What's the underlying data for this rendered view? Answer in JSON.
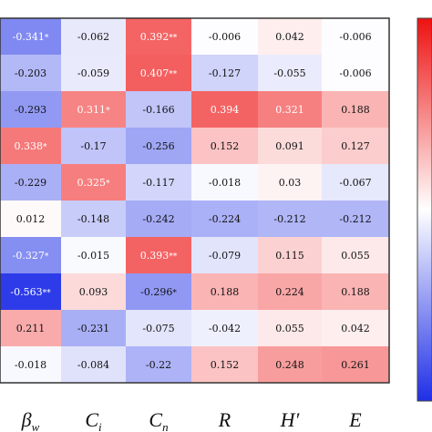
{
  "chart_data": {
    "type": "heatmap",
    "columns": [
      {
        "main": "β",
        "sub": "w"
      },
      {
        "main": "C",
        "sub": "i"
      },
      {
        "main": "C",
        "sub": "n"
      },
      {
        "main": "R",
        "sub": ""
      },
      {
        "main": "H′",
        "sub": ""
      },
      {
        "main": "E",
        "sub": ""
      }
    ],
    "rows": [
      [
        {
          "v": -0.341,
          "label": "-0.341",
          "sig": "*"
        },
        {
          "v": -0.062,
          "label": "-0.062",
          "sig": ""
        },
        {
          "v": 0.392,
          "label": "0.392",
          "sig": "**"
        },
        {
          "v": -0.006,
          "label": "-0.006",
          "sig": ""
        },
        {
          "v": 0.042,
          "label": "0.042",
          "sig": ""
        },
        {
          "v": -0.006,
          "label": "-0.006",
          "sig": ""
        }
      ],
      [
        {
          "v": -0.203,
          "label": "-0.203",
          "sig": ""
        },
        {
          "v": -0.059,
          "label": "-0.059",
          "sig": ""
        },
        {
          "v": 0.407,
          "label": "0.407",
          "sig": "**"
        },
        {
          "v": -0.127,
          "label": "-0.127",
          "sig": ""
        },
        {
          "v": -0.055,
          "label": "-0.055",
          "sig": ""
        },
        {
          "v": -0.006,
          "label": "-0.006",
          "sig": ""
        }
      ],
      [
        {
          "v": -0.293,
          "label": "-0.293",
          "sig": ""
        },
        {
          "v": 0.311,
          "label": "0.311",
          "sig": "*"
        },
        {
          "v": -0.166,
          "label": "-0.166",
          "sig": ""
        },
        {
          "v": 0.394,
          "label": "0.394",
          "sig": ""
        },
        {
          "v": 0.321,
          "label": "0.321",
          "sig": ""
        },
        {
          "v": 0.188,
          "label": "0.188",
          "sig": ""
        }
      ],
      [
        {
          "v": 0.338,
          "label": "0.338",
          "sig": "*"
        },
        {
          "v": -0.17,
          "label": "-0.17",
          "sig": ""
        },
        {
          "v": -0.256,
          "label": "-0.256",
          "sig": ""
        },
        {
          "v": 0.152,
          "label": "0.152",
          "sig": ""
        },
        {
          "v": 0.091,
          "label": "0.091",
          "sig": ""
        },
        {
          "v": 0.127,
          "label": "0.127",
          "sig": ""
        }
      ],
      [
        {
          "v": -0.229,
          "label": "-0.229",
          "sig": ""
        },
        {
          "v": 0.325,
          "label": "0.325",
          "sig": "*"
        },
        {
          "v": -0.117,
          "label": "-0.117",
          "sig": ""
        },
        {
          "v": -0.018,
          "label": "-0.018",
          "sig": ""
        },
        {
          "v": 0.03,
          "label": "0.03",
          "sig": ""
        },
        {
          "v": -0.067,
          "label": "-0.067",
          "sig": ""
        }
      ],
      [
        {
          "v": 0.012,
          "label": "0.012",
          "sig": ""
        },
        {
          "v": -0.148,
          "label": "-0.148",
          "sig": ""
        },
        {
          "v": -0.242,
          "label": "-0.242",
          "sig": ""
        },
        {
          "v": -0.224,
          "label": "-0.224",
          "sig": ""
        },
        {
          "v": -0.212,
          "label": "-0.212",
          "sig": ""
        },
        {
          "v": -0.212,
          "label": "-0.212",
          "sig": ""
        }
      ],
      [
        {
          "v": -0.327,
          "label": "-0.327",
          "sig": "*"
        },
        {
          "v": -0.015,
          "label": "-0.015",
          "sig": ""
        },
        {
          "v": 0.393,
          "label": "0.393",
          "sig": "**"
        },
        {
          "v": -0.079,
          "label": "-0.079",
          "sig": ""
        },
        {
          "v": 0.115,
          "label": "0.115",
          "sig": ""
        },
        {
          "v": 0.055,
          "label": "0.055",
          "sig": ""
        }
      ],
      [
        {
          "v": -0.563,
          "label": "-0.563",
          "sig": "**"
        },
        {
          "v": 0.093,
          "label": "0.093",
          "sig": ""
        },
        {
          "v": -0.296,
          "label": "-0.296",
          "sig": "*"
        },
        {
          "v": 0.188,
          "label": "0.188",
          "sig": ""
        },
        {
          "v": 0.224,
          "label": "0.224",
          "sig": ""
        },
        {
          "v": 0.188,
          "label": "0.188",
          "sig": ""
        }
      ],
      [
        {
          "v": 0.211,
          "label": "0.211",
          "sig": ""
        },
        {
          "v": -0.231,
          "label": "-0.231",
          "sig": ""
        },
        {
          "v": -0.075,
          "label": "-0.075",
          "sig": ""
        },
        {
          "v": -0.042,
          "label": "-0.042",
          "sig": ""
        },
        {
          "v": 0.055,
          "label": "0.055",
          "sig": ""
        },
        {
          "v": 0.042,
          "label": "0.042",
          "sig": ""
        }
      ],
      [
        {
          "v": -0.018,
          "label": "-0.018",
          "sig": ""
        },
        {
          "v": -0.084,
          "label": "-0.084",
          "sig": ""
        },
        {
          "v": -0.22,
          "label": "-0.22",
          "sig": ""
        },
        {
          "v": 0.152,
          "label": "0.152",
          "sig": ""
        },
        {
          "v": 0.248,
          "label": "0.248",
          "sig": ""
        },
        {
          "v": 0.261,
          "label": "0.261",
          "sig": ""
        }
      ]
    ],
    "color_range": [
      -0.6,
      0.6
    ],
    "colormap": {
      "negative": "#1f2fe6",
      "zero": "#ffffff",
      "positive": "#ee1111"
    },
    "colorbar": "right, partially visible"
  }
}
